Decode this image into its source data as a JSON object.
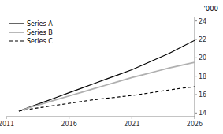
{
  "chart_data": {
    "type": "line",
    "ylabel": "'000",
    "x": [
      2012,
      2013,
      2014,
      2015,
      2016,
      2017,
      2018,
      2019,
      2020,
      2021,
      2022,
      2023,
      2024,
      2025,
      2026
    ],
    "series": [
      {
        "name": "Series A",
        "color": "#000000",
        "line_style": "solid",
        "values": [
          14.2,
          14.7,
          15.2,
          15.7,
          16.2,
          16.7,
          17.2,
          17.7,
          18.2,
          18.7,
          19.3,
          19.9,
          20.5,
          21.2,
          21.9
        ]
      },
      {
        "name": "Series B",
        "color": "#b0b0b0",
        "line_style": "solid",
        "values": [
          14.2,
          14.65,
          15.05,
          15.45,
          15.85,
          16.25,
          16.65,
          17.05,
          17.45,
          17.85,
          18.2,
          18.55,
          18.9,
          19.2,
          19.5
        ]
      },
      {
        "name": "Series C",
        "color": "#000000",
        "line_style": "dashed",
        "values": [
          14.2,
          14.45,
          14.65,
          14.85,
          15.05,
          15.25,
          15.45,
          15.6,
          15.75,
          15.9,
          16.1,
          16.3,
          16.5,
          16.7,
          16.85
        ]
      }
    ],
    "xlim": [
      2011,
      2026
    ],
    "xticks": [
      2011,
      2016,
      2021,
      2026
    ],
    "ylim": [
      13.6,
      24.4
    ],
    "yticks": [
      14,
      16,
      18,
      20,
      22,
      24
    ],
    "grid": false,
    "legend": "upper left"
  }
}
